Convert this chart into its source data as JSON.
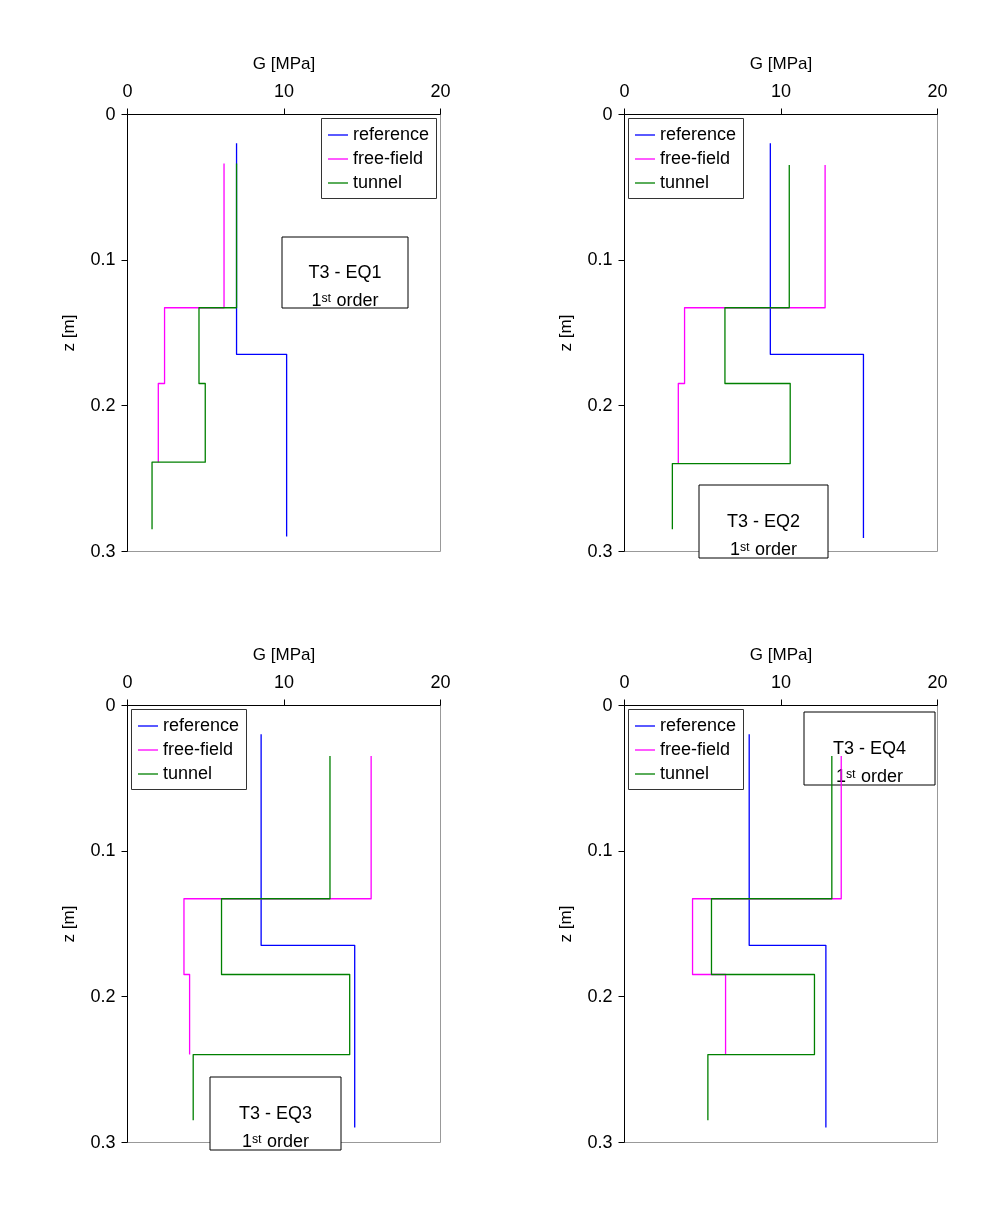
{
  "chart_data": [
    {
      "type": "line",
      "xlabel": "G [MPa]",
      "ylabel": "z [m]",
      "xlim": [
        0,
        20
      ],
      "xticks": [
        0,
        10,
        20
      ],
      "ylim": [
        0.3,
        0
      ],
      "yticks": [
        0,
        0.1,
        0.2,
        0.3
      ],
      "grid": false,
      "legend": "top right",
      "line_style": "solid",
      "marker": "none",
      "annotations": [
        "T3 - EQ1\n1ˢᵗ order"
      ],
      "series": [
        {
          "name": "reference",
          "color": "#0000ff",
          "x": [
            7.0,
            7.0,
            10.2,
            10.2
          ],
          "values": [
            0.02,
            0.165,
            0.165,
            0.29
          ]
        },
        {
          "name": "free-field",
          "color": "#ff00ff",
          "x": [
            6.2,
            6.2,
            2.4,
            2.4,
            2.0,
            2.0
          ],
          "values": [
            0.034,
            0.133,
            0.133,
            0.185,
            0.185,
            0.239
          ]
        },
        {
          "name": "tunnel",
          "color": "#008000",
          "x": [
            7.0,
            7.0,
            4.6,
            4.6,
            5.0,
            5.0,
            1.6,
            1.6
          ],
          "values": [
            0.034,
            0.133,
            0.133,
            0.185,
            0.185,
            0.239,
            0.239,
            0.285
          ]
        }
      ]
    },
    {
      "type": "line",
      "xlabel": "G [MPa]",
      "ylabel": "z [m]",
      "xlim": [
        0,
        20
      ],
      "xticks": [
        0,
        10,
        20
      ],
      "ylim": [
        0.3,
        0
      ],
      "yticks": [
        0,
        0.1,
        0.2,
        0.3
      ],
      "grid": false,
      "legend": "top left",
      "line_style": "solid",
      "marker": "none",
      "annotations": [
        "T3 - EQ2\n1ˢᵗ order"
      ],
      "series": [
        {
          "name": "reference",
          "color": "#0000ff",
          "x": [
            9.35,
            9.35,
            15.3,
            15.3
          ],
          "values": [
            0.02,
            0.165,
            0.165,
            0.291
          ]
        },
        {
          "name": "free-field",
          "color": "#ff00ff",
          "x": [
            12.85,
            12.85,
            3.87,
            3.87,
            3.47,
            3.47
          ],
          "values": [
            0.035,
            0.133,
            0.133,
            0.185,
            0.185,
            0.24
          ]
        },
        {
          "name": "tunnel",
          "color": "#008000",
          "x": [
            10.56,
            10.56,
            6.45,
            6.45,
            10.62,
            10.62,
            3.09,
            3.09
          ],
          "values": [
            0.035,
            0.133,
            0.133,
            0.185,
            0.185,
            0.24,
            0.24,
            0.285
          ]
        }
      ]
    },
    {
      "type": "line",
      "xlabel": "G [MPa]",
      "ylabel": "z [m]",
      "xlim": [
        0,
        20
      ],
      "xticks": [
        0,
        10,
        20
      ],
      "ylim": [
        0.3,
        0
      ],
      "yticks": [
        0,
        0.1,
        0.2,
        0.3
      ],
      "grid": false,
      "legend": "top left",
      "line_style": "solid",
      "marker": "none",
      "annotations": [
        "T3 - EQ3\n1ˢᵗ order"
      ],
      "series": [
        {
          "name": "reference",
          "color": "#0000ff",
          "x": [
            8.57,
            8.57,
            14.55,
            14.55
          ],
          "values": [
            0.02,
            0.165,
            0.165,
            0.29
          ]
        },
        {
          "name": "free-field",
          "color": "#ff00ff",
          "x": [
            15.6,
            15.6,
            3.64,
            3.64,
            4.0,
            4.0
          ],
          "values": [
            0.035,
            0.133,
            0.133,
            0.185,
            0.185,
            0.24
          ]
        },
        {
          "name": "tunnel",
          "color": "#008000",
          "x": [
            12.97,
            12.97,
            6.04,
            6.04,
            14.23,
            14.23,
            4.23,
            4.23
          ],
          "values": [
            0.035,
            0.133,
            0.133,
            0.185,
            0.185,
            0.24,
            0.24,
            0.285
          ]
        }
      ]
    },
    {
      "type": "line",
      "xlabel": "G [MPa]",
      "ylabel": "z [m]",
      "xlim": [
        0,
        20
      ],
      "xticks": [
        0,
        10,
        20
      ],
      "ylim": [
        0.3,
        0
      ],
      "yticks": [
        0,
        0.1,
        0.2,
        0.3
      ],
      "grid": false,
      "legend": "top left",
      "line_style": "solid",
      "marker": "none",
      "annotations": [
        "T3 - EQ4\n1ˢᵗ order"
      ],
      "series": [
        {
          "name": "reference",
          "color": "#0000ff",
          "x": [
            8.0,
            8.0,
            12.9,
            12.9
          ],
          "values": [
            0.02,
            0.165,
            0.165,
            0.29
          ]
        },
        {
          "name": "free-field",
          "color": "#ff00ff",
          "x": [
            13.88,
            13.88,
            4.38,
            4.38,
            6.49,
            6.49
          ],
          "values": [
            0.035,
            0.133,
            0.133,
            0.185,
            0.185,
            0.24
          ]
        },
        {
          "name": "tunnel",
          "color": "#008000",
          "x": [
            13.28,
            13.28,
            5.59,
            5.59,
            12.17,
            12.17,
            5.36,
            5.36
          ],
          "values": [
            0.035,
            0.133,
            0.133,
            0.185,
            0.185,
            0.24,
            0.24,
            0.285
          ]
        }
      ]
    }
  ]
}
